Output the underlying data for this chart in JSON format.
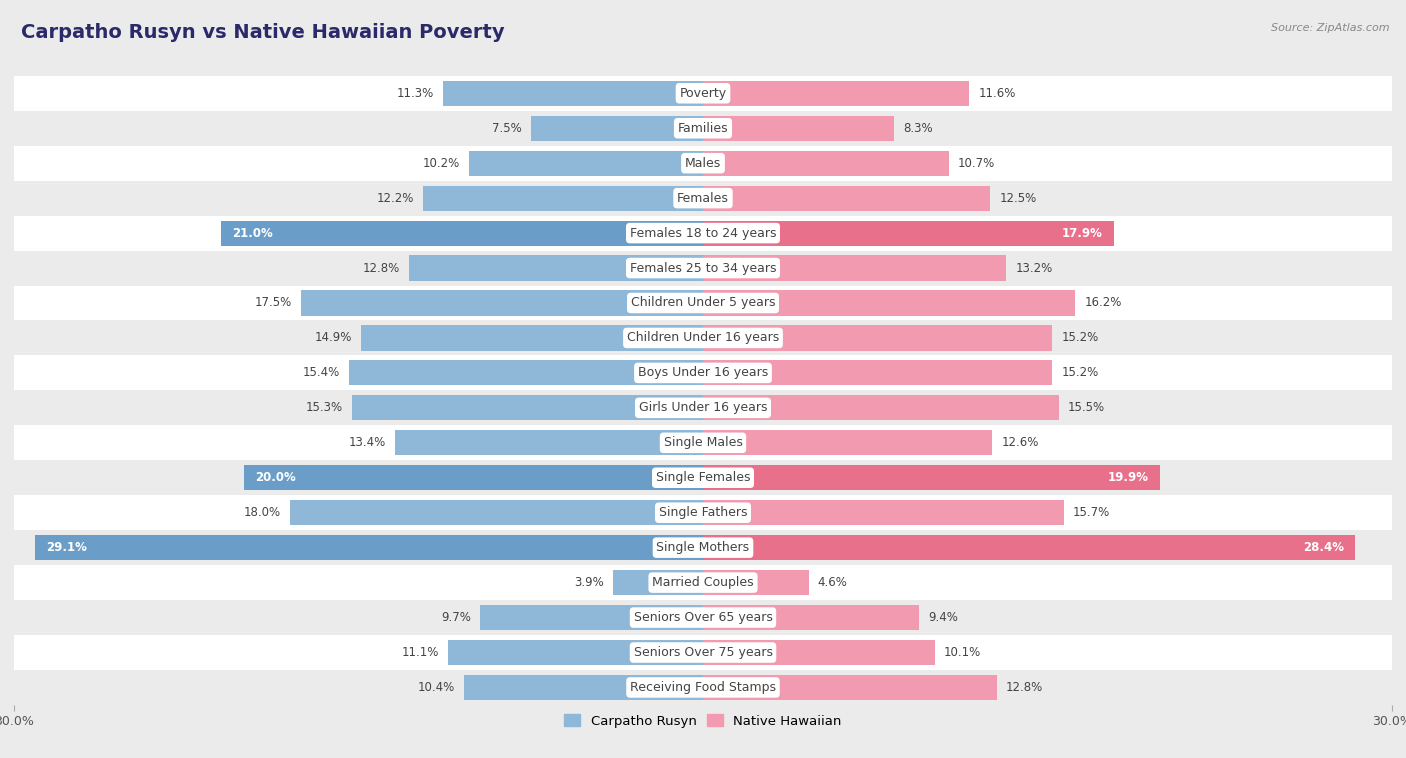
{
  "title": "Carpatho Rusyn vs Native Hawaiian Poverty",
  "source": "Source: ZipAtlas.com",
  "categories": [
    "Poverty",
    "Families",
    "Males",
    "Females",
    "Females 18 to 24 years",
    "Females 25 to 34 years",
    "Children Under 5 years",
    "Children Under 16 years",
    "Boys Under 16 years",
    "Girls Under 16 years",
    "Single Males",
    "Single Females",
    "Single Fathers",
    "Single Mothers",
    "Married Couples",
    "Seniors Over 65 years",
    "Seniors Over 75 years",
    "Receiving Food Stamps"
  ],
  "left_values": [
    11.3,
    7.5,
    10.2,
    12.2,
    21.0,
    12.8,
    17.5,
    14.9,
    15.4,
    15.3,
    13.4,
    20.0,
    18.0,
    29.1,
    3.9,
    9.7,
    11.1,
    10.4
  ],
  "right_values": [
    11.6,
    8.3,
    10.7,
    12.5,
    17.9,
    13.2,
    16.2,
    15.2,
    15.2,
    15.5,
    12.6,
    19.9,
    15.7,
    28.4,
    4.6,
    9.4,
    10.1,
    12.8
  ],
  "left_color": "#8fb8d8",
  "right_color": "#f29ab0",
  "left_color_highlight": "#6a9ec8",
  "right_color_highlight": "#e8708a",
  "left_label": "Carpatho Rusyn",
  "right_label": "Native Hawaiian",
  "xlim": 30.0,
  "background_color": "#ebebeb",
  "row_color_even": "#ffffff",
  "row_color_odd": "#ebebeb",
  "title_fontsize": 14,
  "label_fontsize": 9,
  "value_fontsize": 8.5,
  "highlight_rows": [
    4,
    11,
    13
  ]
}
